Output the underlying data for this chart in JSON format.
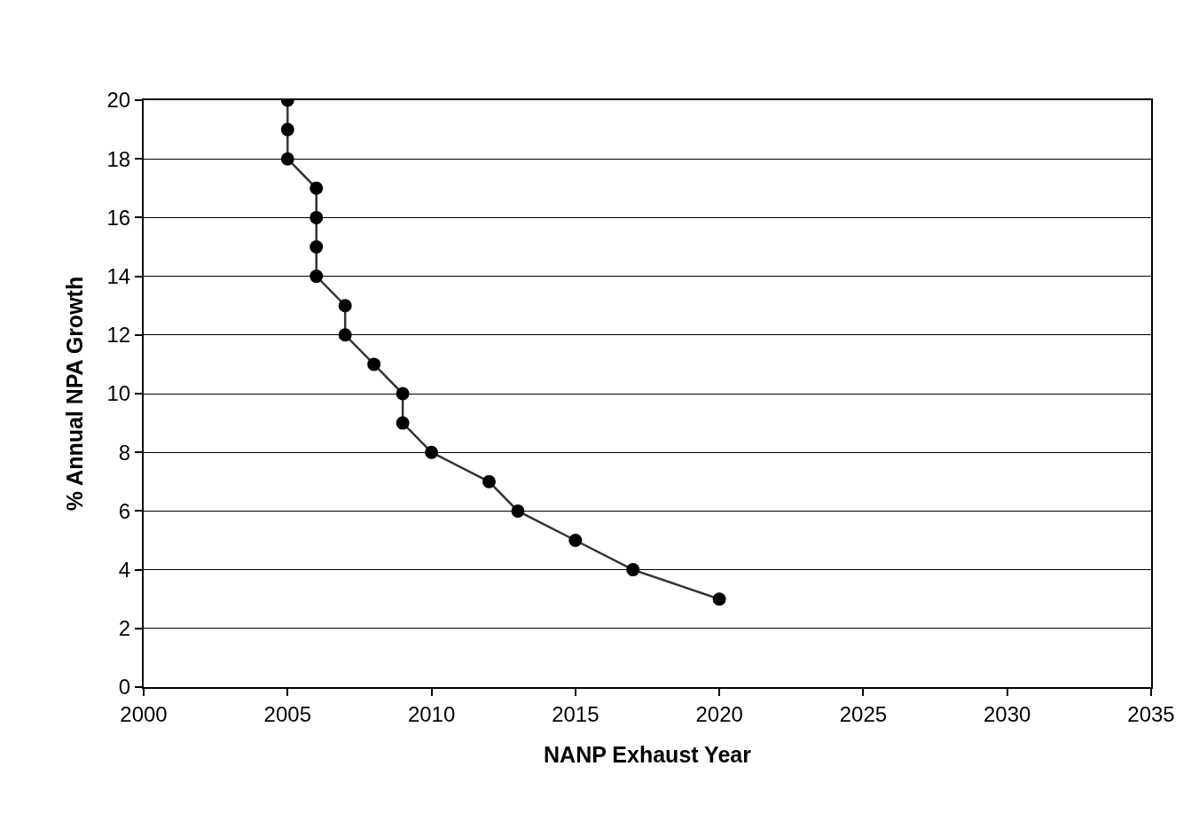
{
  "chart_data": {
    "type": "line",
    "xlabel": "NANP Exhaust Year",
    "ylabel": "% Annual NPA Growth",
    "x": [
      2005,
      2005,
      2005,
      2006,
      2006,
      2006,
      2006,
      2007,
      2007,
      2008,
      2009,
      2009,
      2010,
      2012,
      2013,
      2015,
      2017,
      2020
    ],
    "series": [
      {
        "color": "#333333",
        "values": [
          20,
          19,
          18,
          17,
          16,
          15,
          14,
          13,
          12,
          11,
          10,
          9,
          8,
          7,
          6,
          5,
          4,
          3
        ]
      }
    ],
    "xlim": [
      2000,
      2035
    ],
    "xticks": [
      2000,
      2005,
      2010,
      2015,
      2020,
      2025,
      2030,
      2035
    ],
    "ylim": [
      0,
      20
    ],
    "yticks": [
      0,
      2,
      4,
      6,
      8,
      10,
      12,
      14,
      16,
      18,
      20
    ],
    "grid": "y",
    "marker": "circle",
    "line_style": "solid"
  }
}
